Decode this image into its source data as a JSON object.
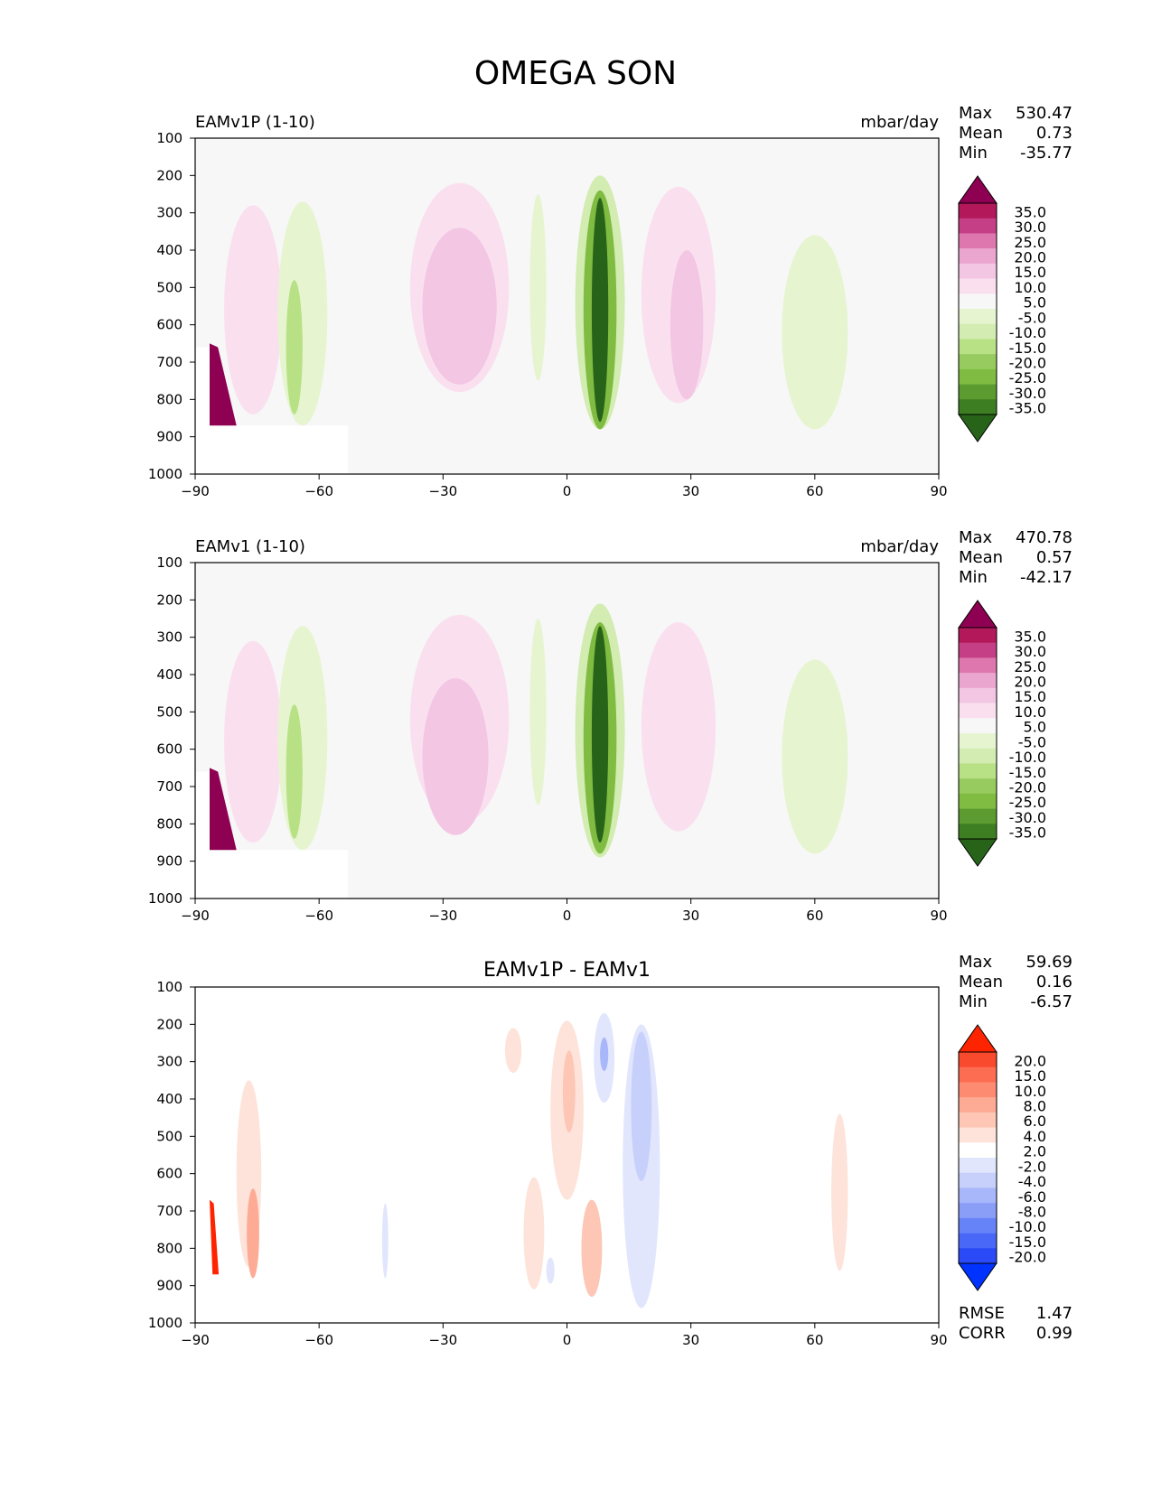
{
  "figure": {
    "title": "OMEGA SON"
  },
  "chart_data": [
    {
      "type": "heatmap",
      "id": "test",
      "title": "",
      "left_title": "EAMv1P (1-10)",
      "units": "mbar/day",
      "xlabel": "",
      "ylabel": "",
      "x_ticks": [
        "−90",
        "−60",
        "−30",
        "0",
        "30",
        "60",
        "90"
      ],
      "y_ticks": [
        "100",
        "200",
        "300",
        "400",
        "500",
        "600",
        "700",
        "800",
        "900",
        "1000"
      ],
      "xlim": [
        -90,
        90
      ],
      "ylim": [
        1000,
        100
      ],
      "stats": [
        {
          "label": "Max",
          "value": "530.47"
        },
        {
          "label": "Mean",
          "value": "0.73"
        },
        {
          "label": "Min",
          "value": "-35.77"
        }
      ],
      "colorbar": {
        "labels": [
          "35.0",
          "30.0",
          "25.0",
          "20.0",
          "15.0",
          "10.0",
          "5.0",
          "-5.0",
          "-10.0",
          "-15.0",
          "-20.0",
          "-25.0",
          "-30.0",
          "-35.0"
        ],
        "colors": [
          "#8e0152",
          "#b2185a",
          "#c53f86",
          "#de77ae",
          "#eba6cf",
          "#f3c6e3",
          "#fae0ef",
          "#f7f7f7",
          "#e6f5d0",
          "#d2ecb1",
          "#b8e186",
          "#97cb5f",
          "#7fbc41",
          "#5b9b2f",
          "#3d7e22",
          "#276419"
        ]
      },
      "pink_blobs": [
        {
          "lat": -26,
          "p": 500,
          "w": 24,
          "h": 560,
          "level": 1
        },
        {
          "lat": -26,
          "p": 550,
          "w": 18,
          "h": 420,
          "level": 2
        },
        {
          "lat": 27,
          "p": 520,
          "w": 18,
          "h": 580,
          "level": 1
        },
        {
          "lat": 29,
          "p": 600,
          "w": 8,
          "h": 400,
          "level": 2
        },
        {
          "lat": -76,
          "p": 560,
          "w": 14,
          "h": 560,
          "level": 1
        }
      ],
      "green_blobs": [
        {
          "lat": 8,
          "p": 540,
          "w": 12,
          "h": 680,
          "level": 2
        },
        {
          "lat": 8,
          "p": 560,
          "w": 8,
          "h": 640,
          "level": 5
        },
        {
          "lat": 8,
          "p": 560,
          "w": 4,
          "h": 600,
          "level": 8
        },
        {
          "lat": -64,
          "p": 570,
          "w": 12,
          "h": 600,
          "level": 1
        },
        {
          "lat": -66,
          "p": 660,
          "w": 4,
          "h": 360,
          "level": 3
        },
        {
          "lat": 60,
          "p": 620,
          "w": 16,
          "h": 520,
          "level": 1
        },
        {
          "lat": -7,
          "p": 500,
          "w": 4,
          "h": 500,
          "level": 1
        }
      ]
    },
    {
      "type": "heatmap",
      "id": "ref",
      "title": "",
      "left_title": "EAMv1 (1-10)",
      "units": "mbar/day",
      "xlabel": "",
      "ylabel": "",
      "x_ticks": [
        "−90",
        "−60",
        "−30",
        "0",
        "30",
        "60",
        "90"
      ],
      "y_ticks": [
        "100",
        "200",
        "300",
        "400",
        "500",
        "600",
        "700",
        "800",
        "900",
        "1000"
      ],
      "xlim": [
        -90,
        90
      ],
      "ylim": [
        1000,
        100
      ],
      "stats": [
        {
          "label": "Max",
          "value": "470.78"
        },
        {
          "label": "Mean",
          "value": "0.57"
        },
        {
          "label": "Min",
          "value": "-42.17"
        }
      ],
      "colorbar": {
        "labels": [
          "35.0",
          "30.0",
          "25.0",
          "20.0",
          "15.0",
          "10.0",
          "5.0",
          "-5.0",
          "-10.0",
          "-15.0",
          "-20.0",
          "-25.0",
          "-30.0",
          "-35.0"
        ],
        "colors": [
          "#8e0152",
          "#b2185a",
          "#c53f86",
          "#de77ae",
          "#eba6cf",
          "#f3c6e3",
          "#fae0ef",
          "#f7f7f7",
          "#e6f5d0",
          "#d2ecb1",
          "#b8e186",
          "#97cb5f",
          "#7fbc41",
          "#5b9b2f",
          "#3d7e22",
          "#276419"
        ]
      },
      "pink_blobs": [
        {
          "lat": -26,
          "p": 520,
          "w": 24,
          "h": 560,
          "level": 1
        },
        {
          "lat": -27,
          "p": 620,
          "w": 16,
          "h": 420,
          "level": 2
        },
        {
          "lat": 27,
          "p": 540,
          "w": 18,
          "h": 560,
          "level": 1
        },
        {
          "lat": -76,
          "p": 580,
          "w": 14,
          "h": 540,
          "level": 1
        }
      ],
      "green_blobs": [
        {
          "lat": 8,
          "p": 550,
          "w": 12,
          "h": 680,
          "level": 2
        },
        {
          "lat": 8,
          "p": 570,
          "w": 8,
          "h": 620,
          "level": 5
        },
        {
          "lat": 8,
          "p": 560,
          "w": 4,
          "h": 580,
          "level": 8
        },
        {
          "lat": -64,
          "p": 570,
          "w": 12,
          "h": 600,
          "level": 1
        },
        {
          "lat": -66,
          "p": 660,
          "w": 4,
          "h": 360,
          "level": 3
        },
        {
          "lat": 60,
          "p": 620,
          "w": 16,
          "h": 520,
          "level": 1
        },
        {
          "lat": -7,
          "p": 500,
          "w": 4,
          "h": 500,
          "level": 1
        }
      ]
    },
    {
      "type": "heatmap",
      "id": "diff",
      "title": "EAMv1P - EAMv1",
      "left_title": "",
      "units": "",
      "xlabel": "",
      "ylabel": "",
      "x_ticks": [
        "−90",
        "−60",
        "−30",
        "0",
        "30",
        "60",
        "90"
      ],
      "y_ticks": [
        "100",
        "200",
        "300",
        "400",
        "500",
        "600",
        "700",
        "800",
        "900",
        "1000"
      ],
      "xlim": [
        -90,
        90
      ],
      "ylim": [
        1000,
        100
      ],
      "stats": [
        {
          "label": "Max",
          "value": "59.69"
        },
        {
          "label": "Mean",
          "value": "0.16"
        },
        {
          "label": "Min",
          "value": "-6.57"
        }
      ],
      "bottom_stats": [
        {
          "label": "RMSE",
          "value": "1.47"
        },
        {
          "label": "CORR",
          "value": "0.99"
        }
      ],
      "colorbar": {
        "labels": [
          "20.0",
          "15.0",
          "10.0",
          "8.0",
          "6.0",
          "4.0",
          "2.0",
          "-2.0",
          "-4.0",
          "-6.0",
          "-8.0",
          "-10.0",
          "-15.0",
          "-20.0"
        ],
        "colors": [
          "#ff2400",
          "#fa4a2e",
          "#fc6d52",
          "#fd8b72",
          "#fdab95",
          "#fdc6b5",
          "#fde3d9",
          "#ffffff",
          "#e1e6fd",
          "#c6d0fb",
          "#a8b7fa",
          "#8a9ef8",
          "#6684f8",
          "#4a68f7",
          "#2a49f7",
          "#0033ff"
        ]
      },
      "red_blobs": [
        {
          "lat": 0,
          "p": 430,
          "w": 8,
          "h": 480,
          "level": 1
        },
        {
          "lat": 0.5,
          "p": 380,
          "w": 3,
          "h": 220,
          "level": 2
        },
        {
          "lat": 6,
          "p": 800,
          "w": 5,
          "h": 260,
          "level": 2
        },
        {
          "lat": -13,
          "p": 270,
          "w": 4,
          "h": 120,
          "level": 1
        },
        {
          "lat": -8,
          "p": 760,
          "w": 5,
          "h": 300,
          "level": 1
        },
        {
          "lat": 66,
          "p": 650,
          "w": 4,
          "h": 420,
          "level": 1
        },
        {
          "lat": -77,
          "p": 600,
          "w": 6,
          "h": 500,
          "level": 1
        },
        {
          "lat": -76,
          "p": 760,
          "w": 3,
          "h": 240,
          "level": 3
        }
      ],
      "blue_blobs": [
        {
          "lat": 9,
          "p": 290,
          "w": 5,
          "h": 240,
          "level": 1
        },
        {
          "lat": 9,
          "p": 280,
          "w": 2,
          "h": 90,
          "level": 3
        },
        {
          "lat": 18,
          "p": 580,
          "w": 9,
          "h": 760,
          "level": 1
        },
        {
          "lat": 18,
          "p": 420,
          "w": 5,
          "h": 400,
          "level": 2
        },
        {
          "lat": -44,
          "p": 780,
          "w": 1.5,
          "h": 200,
          "level": 1
        },
        {
          "lat": -4,
          "p": 860,
          "w": 2,
          "h": 70,
          "level": 1
        }
      ]
    }
  ]
}
